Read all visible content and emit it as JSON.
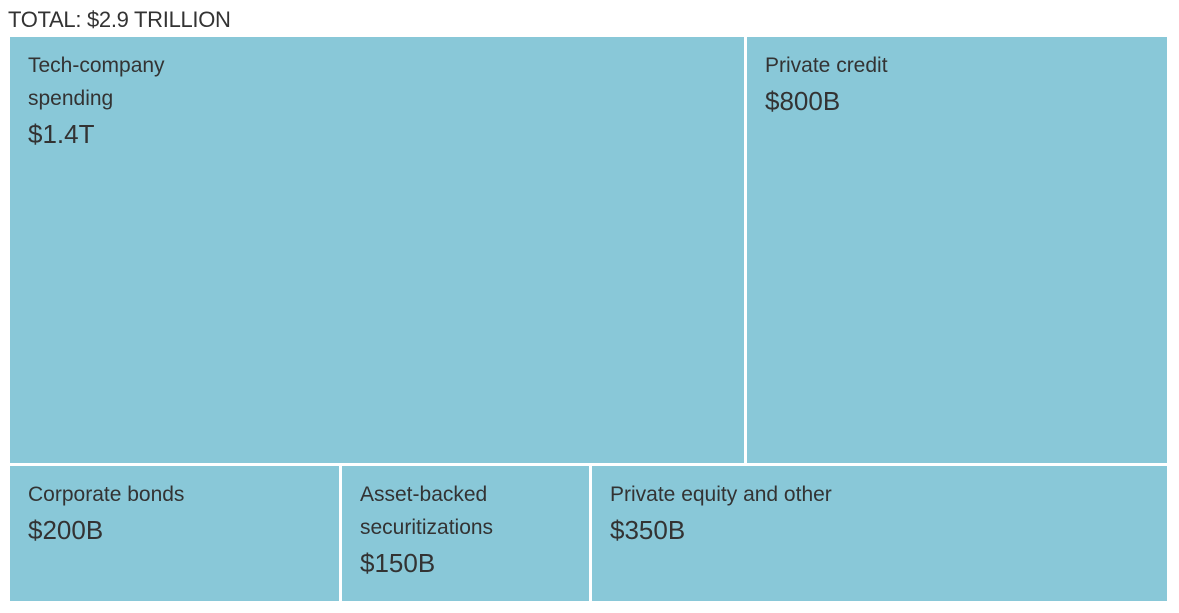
{
  "chart_data": {
    "type": "treemap",
    "title": "TOTAL: $2.9 TRILLION",
    "tiles": [
      {
        "name": "Tech-company\nspending",
        "value": 1400,
        "value_label": "$1.4T"
      },
      {
        "name": "Private credit",
        "value": 800,
        "value_label": "$800B"
      },
      {
        "name": "Corporate bonds",
        "value": 200,
        "value_label": "$200B"
      },
      {
        "name": "Asset-backed\nsecuritizations",
        "value": 150,
        "value_label": "$150B"
      },
      {
        "name": "Private equity and other",
        "value": 350,
        "value_label": "$350B"
      }
    ],
    "unit": "billions of dollars",
    "colors": {
      "tile": "#89c8d8",
      "border": "#ffffff",
      "text": "#333333"
    }
  }
}
